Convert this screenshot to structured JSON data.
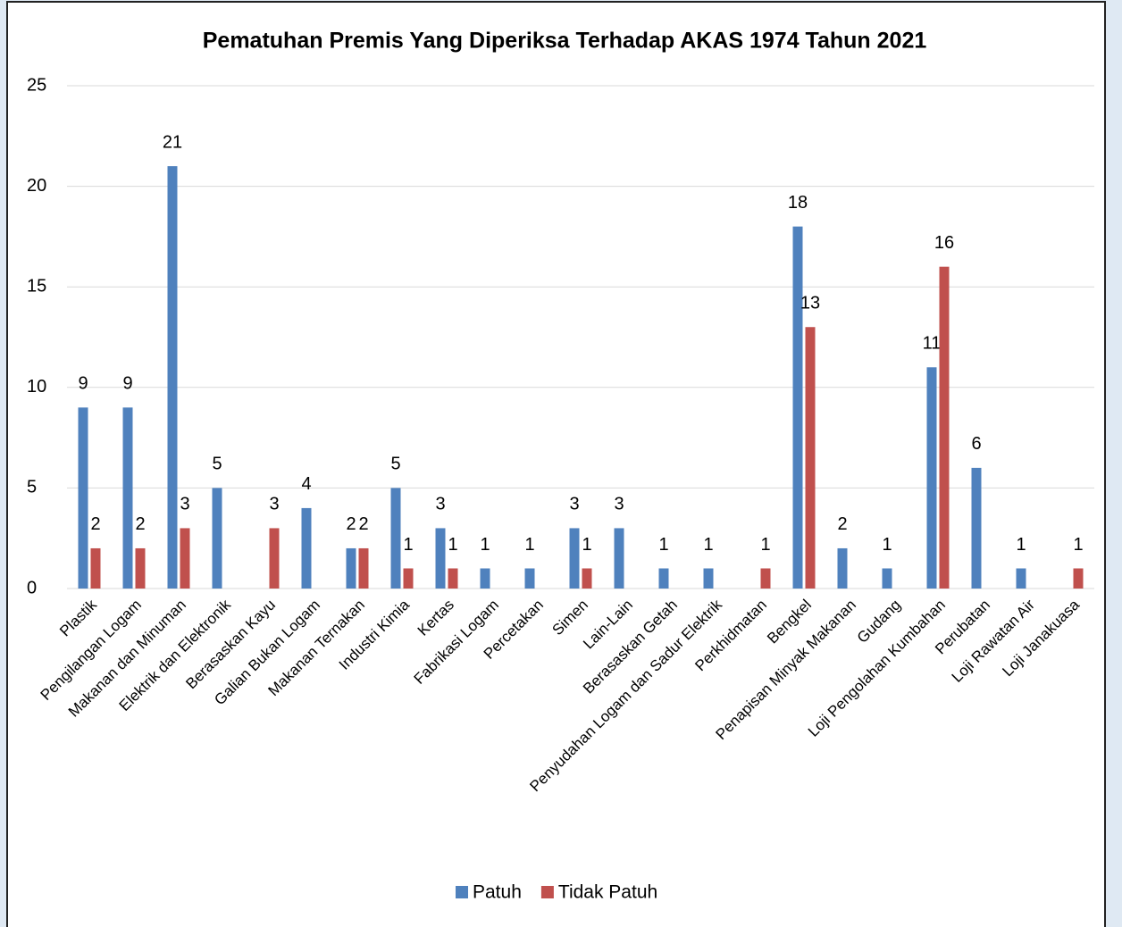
{
  "chart_data": {
    "type": "bar",
    "title": "Pematuhan Premis Yang Diperiksa Terhadap AKAS 1974 Tahun 2021",
    "categories": [
      "Plastik",
      "Pengilangan Logam",
      "Makanan dan Minuman",
      "Elektrik dan Elektronik",
      "Berasaskan Kayu",
      "Galian Bukan Logam",
      "Makanan Ternakan",
      "Industri Kimia",
      "Kertas",
      "Fabrikasi Logam",
      "Percetakan",
      "Simen",
      "Lain-Lain",
      "Berasaskan Getah",
      "Penyudahan Logam dan Sadur Elektrik",
      "Perkhidmatan",
      "Bengkel",
      "Penapisan Minyak Makanan",
      "Gudang",
      "Loji Pengolahan Kumbahan",
      "Perubatan",
      "Loji Rawatan Air",
      "Loji Janakuasa"
    ],
    "series": [
      {
        "name": "Patuh",
        "color": "#4f81bd",
        "values": [
          9,
          9,
          21,
          5,
          null,
          4,
          2,
          5,
          3,
          1,
          1,
          3,
          3,
          1,
          1,
          null,
          18,
          2,
          1,
          11,
          6,
          1,
          null
        ]
      },
      {
        "name": "Tidak Patuh",
        "color": "#c0504d",
        "values": [
          2,
          2,
          3,
          null,
          3,
          null,
          2,
          1,
          1,
          null,
          null,
          1,
          null,
          null,
          null,
          1,
          13,
          null,
          null,
          16,
          null,
          null,
          1
        ]
      }
    ],
    "ylim": [
      0,
      25
    ],
    "yticks": [
      0,
      5,
      10,
      15,
      20,
      25
    ],
    "grid": true,
    "legend": "bottom"
  }
}
